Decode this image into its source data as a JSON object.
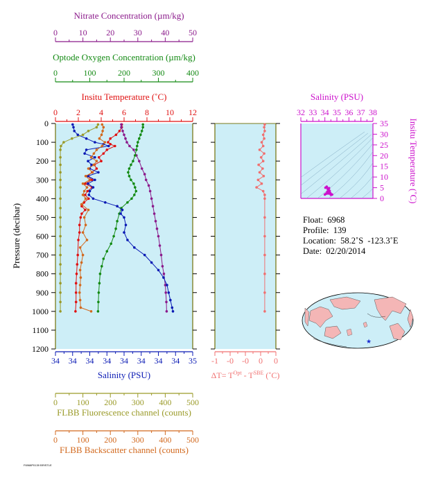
{
  "axes": {
    "nitrate": {
      "label": "Nitrate Concentration (µm/kg)",
      "ticks": [
        "0",
        "10",
        "20",
        "30",
        "40",
        "50"
      ],
      "color": "#8b1a8b"
    },
    "oxygen": {
      "label": "Optode Oxygen Concentration (µm/kg)",
      "ticks": [
        "0",
        "100",
        "200",
        "300",
        "400"
      ],
      "color": "#138a13"
    },
    "temperature": {
      "label": "Insitu Temperature (˚C)",
      "ticks": [
        "0",
        "2",
        "4",
        "6",
        "8",
        "10",
        "12"
      ],
      "color": "#e01010"
    },
    "salinity_bottom": {
      "label": "Salinity (PSU)",
      "ticks": [
        "34",
        "34",
        "34",
        "34",
        "34",
        "34",
        "34",
        "34",
        "35"
      ],
      "color": "#0a1ab4"
    },
    "fluorescence": {
      "label": "FLBB Fluorescence channel (counts)",
      "ticks": [
        "0",
        "100",
        "200",
        "300",
        "400",
        "500"
      ],
      "color": "#9a9a28"
    },
    "backscatter": {
      "label": "FLBB Backscatter channel (counts)",
      "ticks": [
        "0",
        "100",
        "200",
        "300",
        "400",
        "500"
      ],
      "color": "#d2691e"
    },
    "pressure": {
      "label": "Pressure (decibar)",
      "ticks": [
        "0",
        "100",
        "200",
        "300",
        "400",
        "500",
        "600",
        "700",
        "800",
        "900",
        "1000",
        "1100",
        "1200"
      ]
    },
    "delta_t": {
      "label_main": "ΔT= T",
      "label_sup1": "Opt",
      "label_mid": " - T",
      "label_sup2": "SBE",
      "label_end": " (˚C)",
      "ticks": [
        "-1",
        "-0",
        "-0",
        "0",
        "0"
      ],
      "color": "#f07070"
    },
    "ts_salinity": {
      "label": "Salinity (PSU)",
      "ticks": [
        "32",
        "33",
        "34",
        "35",
        "36",
        "37",
        "38"
      ],
      "color": "#cc11cc"
    },
    "ts_temperature": {
      "label": "Insitu Temperature (˚C)",
      "ticks": [
        "0",
        "5",
        "10",
        "15",
        "20",
        "25",
        "30",
        "35"
      ],
      "color": "#cc11cc"
    }
  },
  "info": {
    "float_label": "Float:",
    "float_value": "6968",
    "profile_label": "Profile:",
    "profile_value": "139",
    "location_label": "Location:",
    "location_value": "58.2˚S  -123.3˚E",
    "date_label": "Date:",
    "date_value": "02/20/2014"
  },
  "footer_text": "F6968P0139 BRISTLE",
  "colors": {
    "panel_bg": "#cdeef7",
    "axis_frame": "#7a7a1a"
  },
  "chart_data": {
    "type": "line",
    "y_axis": "Pressure (decibar)",
    "ylim": [
      1200,
      0
    ],
    "series": [
      {
        "name": "Insitu Temperature (˚C)",
        "color": "#e01010",
        "xlim": [
          0,
          12
        ],
        "points": [
          [
            5.8,
            5
          ],
          [
            5.8,
            20
          ],
          [
            5.6,
            40
          ],
          [
            5.3,
            60
          ],
          [
            4.8,
            80
          ],
          [
            4.6,
            100
          ],
          [
            4.8,
            110
          ],
          [
            5.2,
            120
          ],
          [
            4.5,
            140
          ],
          [
            4.2,
            160
          ],
          [
            3.8,
            180
          ],
          [
            4.0,
            200
          ],
          [
            3.4,
            220
          ],
          [
            3.6,
            240
          ],
          [
            3.2,
            260
          ],
          [
            2.8,
            280
          ],
          [
            3.2,
            300
          ],
          [
            2.6,
            320
          ],
          [
            3.2,
            340
          ],
          [
            2.8,
            360
          ],
          [
            2.6,
            380
          ],
          [
            2.9,
            400
          ],
          [
            2.5,
            420
          ],
          [
            2.3,
            440
          ],
          [
            2.6,
            460
          ],
          [
            2.3,
            480
          ],
          [
            2.2,
            500
          ],
          [
            2.1,
            540
          ],
          [
            2.1,
            580
          ],
          [
            2.0,
            620
          ],
          [
            1.95,
            700
          ],
          [
            1.9,
            750
          ],
          [
            1.85,
            800
          ],
          [
            1.8,
            850
          ],
          [
            1.8,
            900
          ],
          [
            1.8,
            950
          ],
          [
            1.75,
            1000
          ]
        ]
      },
      {
        "name": "Nitrate Concentration (µm/kg)",
        "color": "#8b1a8b",
        "xlim": [
          0,
          50
        ],
        "points": [
          [
            24,
            5
          ],
          [
            24,
            20
          ],
          [
            24.5,
            40
          ],
          [
            25,
            60
          ],
          [
            25.5,
            80
          ],
          [
            26,
            100
          ],
          [
            27,
            120
          ],
          [
            28.5,
            140
          ],
          [
            29.5,
            170
          ],
          [
            30.5,
            200
          ],
          [
            31.5,
            240
          ],
          [
            32.5,
            270
          ],
          [
            33,
            300
          ],
          [
            34,
            330
          ],
          [
            34.5,
            360
          ],
          [
            35,
            400
          ],
          [
            35.5,
            440
          ],
          [
            36,
            480
          ],
          [
            36.5,
            520
          ],
          [
            37,
            560
          ],
          [
            37.5,
            600
          ],
          [
            38,
            650
          ],
          [
            38.5,
            700
          ],
          [
            39,
            760
          ],
          [
            39.5,
            800
          ],
          [
            40,
            860
          ],
          [
            40.2,
            900
          ],
          [
            40.4,
            950
          ],
          [
            40.5,
            1000
          ]
        ]
      },
      {
        "name": "Optode Oxygen Concentration (µm/kg)",
        "color": "#138a13",
        "xlim": [
          0,
          400
        ],
        "points": [
          [
            255,
            5
          ],
          [
            255,
            20
          ],
          [
            252,
            40
          ],
          [
            248,
            60
          ],
          [
            244,
            80
          ],
          [
            240,
            100
          ],
          [
            238,
            120
          ],
          [
            236,
            140
          ],
          [
            232,
            170
          ],
          [
            226,
            200
          ],
          [
            220,
            220
          ],
          [
            215,
            240
          ],
          [
            212,
            260
          ],
          [
            215,
            280
          ],
          [
            220,
            300
          ],
          [
            228,
            320
          ],
          [
            232,
            340
          ],
          [
            235,
            360
          ],
          [
            230,
            380
          ],
          [
            222,
            400
          ],
          [
            210,
            420
          ],
          [
            192,
            450
          ],
          [
            186,
            480
          ],
          [
            180,
            520
          ],
          [
            176,
            560
          ],
          [
            170,
            600
          ],
          [
            162,
            640
          ],
          [
            150,
            680
          ],
          [
            140,
            720
          ],
          [
            135,
            760
          ],
          [
            130,
            800
          ],
          [
            128,
            850
          ],
          [
            126,
            900
          ],
          [
            125,
            950
          ],
          [
            124,
            1000
          ]
        ]
      },
      {
        "name": "Salinity (PSU)",
        "color": "#0a1ab4",
        "xlim": [
          0,
          8
        ],
        "points": [
          [
            1.0,
            5
          ],
          [
            1.05,
            20
          ],
          [
            1.1,
            40
          ],
          [
            1.3,
            60
          ],
          [
            1.8,
            80
          ],
          [
            2.3,
            100
          ],
          [
            2.8,
            110
          ],
          [
            3.1,
            120
          ],
          [
            1.8,
            140
          ],
          [
            1.7,
            160
          ],
          [
            2.3,
            180
          ],
          [
            1.9,
            200
          ],
          [
            2.1,
            220
          ],
          [
            2.0,
            240
          ],
          [
            2.5,
            260
          ],
          [
            1.9,
            280
          ],
          [
            2.3,
            300
          ],
          [
            1.9,
            320
          ],
          [
            2.2,
            340
          ],
          [
            2.0,
            360
          ],
          [
            1.95,
            380
          ],
          [
            2.2,
            400
          ],
          [
            2.9,
            420
          ],
          [
            3.6,
            440
          ],
          [
            3.9,
            460
          ],
          [
            3.8,
            480
          ],
          [
            4.0,
            500
          ],
          [
            4.1,
            540
          ],
          [
            4.0,
            580
          ],
          [
            4.2,
            620
          ],
          [
            4.6,
            660
          ],
          [
            5.2,
            700
          ],
          [
            5.6,
            740
          ],
          [
            6.0,
            780
          ],
          [
            6.3,
            820
          ],
          [
            6.5,
            860
          ],
          [
            6.6,
            900
          ],
          [
            6.7,
            940
          ],
          [
            6.8,
            980
          ],
          [
            6.85,
            1000
          ]
        ]
      },
      {
        "name": "FLBB Fluorescence channel (counts)",
        "color": "#9a9a28",
        "xlim": [
          0,
          500
        ],
        "points": [
          [
            155,
            5
          ],
          [
            150,
            20
          ],
          [
            120,
            40
          ],
          [
            100,
            60
          ],
          [
            60,
            80
          ],
          [
            30,
            100
          ],
          [
            20,
            120
          ],
          [
            18,
            140
          ],
          [
            18,
            180
          ],
          [
            18,
            220
          ],
          [
            18,
            260
          ],
          [
            18,
            300
          ],
          [
            18,
            340
          ],
          [
            18,
            400
          ],
          [
            18,
            450
          ],
          [
            18,
            500
          ],
          [
            18,
            550
          ],
          [
            18,
            600
          ],
          [
            18,
            650
          ],
          [
            18,
            700
          ],
          [
            18,
            750
          ],
          [
            18,
            800
          ],
          [
            18,
            850
          ],
          [
            18,
            900
          ],
          [
            18,
            950
          ],
          [
            18,
            1000
          ]
        ]
      },
      {
        "name": "FLBB Backscatter channel (counts)",
        "color": "#d2691e",
        "xlim": [
          0,
          500
        ],
        "points": [
          [
            170,
            5
          ],
          [
            175,
            20
          ],
          [
            172,
            40
          ],
          [
            168,
            60
          ],
          [
            160,
            80
          ],
          [
            180,
            100
          ],
          [
            170,
            120
          ],
          [
            150,
            140
          ],
          [
            140,
            160
          ],
          [
            130,
            180
          ],
          [
            150,
            200
          ],
          [
            140,
            220
          ],
          [
            120,
            240
          ],
          [
            135,
            260
          ],
          [
            110,
            280
          ],
          [
            125,
            300
          ],
          [
            100,
            320
          ],
          [
            115,
            340
          ],
          [
            105,
            360
          ],
          [
            100,
            380
          ],
          [
            110,
            400
          ],
          [
            95,
            430
          ],
          [
            120,
            460
          ],
          [
            105,
            500
          ],
          [
            110,
            540
          ],
          [
            100,
            580
          ],
          [
            115,
            620
          ],
          [
            90,
            660
          ],
          [
            100,
            700
          ],
          [
            95,
            740
          ],
          [
            90,
            780
          ],
          [
            92,
            820
          ],
          [
            90,
            860
          ],
          [
            88,
            900
          ],
          [
            90,
            940
          ],
          [
            92,
            980
          ],
          [
            130,
            1000
          ]
        ]
      },
      {
        "name": "ΔT",
        "color": "#f07070",
        "xlim": [
          -1,
          0.2
        ],
        "points": [
          [
            -0.02,
            5
          ],
          [
            -0.03,
            20
          ],
          [
            -0.02,
            40
          ],
          [
            -0.05,
            60
          ],
          [
            -0.03,
            80
          ],
          [
            -0.08,
            100
          ],
          [
            -0.05,
            120
          ],
          [
            -0.12,
            140
          ],
          [
            -0.03,
            160
          ],
          [
            -0.09,
            180
          ],
          [
            -0.05,
            200
          ],
          [
            -0.14,
            220
          ],
          [
            -0.06,
            240
          ],
          [
            -0.12,
            260
          ],
          [
            -0.04,
            280
          ],
          [
            -0.15,
            300
          ],
          [
            -0.08,
            320
          ],
          [
            -0.18,
            340
          ],
          [
            -0.05,
            360
          ],
          [
            -0.02,
            380
          ],
          [
            -0.02,
            400
          ],
          [
            -0.02,
            500
          ],
          [
            -0.02,
            600
          ],
          [
            -0.02,
            700
          ],
          [
            -0.02,
            800
          ],
          [
            -0.02,
            900
          ],
          [
            -0.02,
            1000
          ]
        ]
      },
      {
        "name": "T-S",
        "color": "#cc11cc",
        "xlim": [
          32,
          38
        ],
        "ylim_t": [
          0,
          35
        ],
        "points": [
          [
            34.0,
            1.8
          ],
          [
            34.1,
            2.2
          ],
          [
            34.2,
            3.0
          ],
          [
            34.3,
            3.6
          ],
          [
            34.25,
            4.2
          ],
          [
            34.05,
            5.0
          ],
          [
            34.15,
            5.5
          ],
          [
            34.35,
            4.8
          ],
          [
            34.4,
            3.5
          ],
          [
            34.45,
            2.5
          ],
          [
            34.5,
            2.0
          ],
          [
            34.6,
            1.8
          ],
          [
            34.5,
            1.7
          ]
        ]
      }
    ]
  }
}
